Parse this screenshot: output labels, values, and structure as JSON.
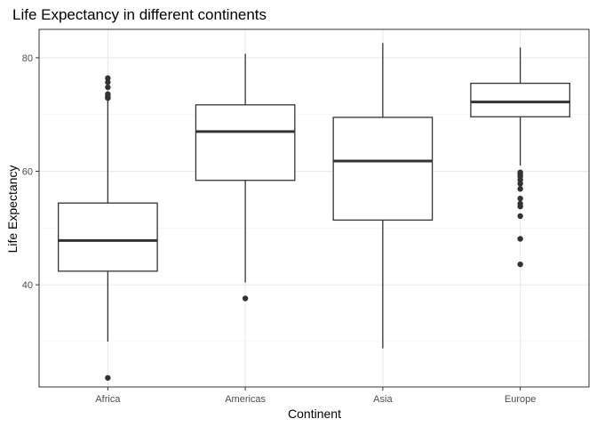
{
  "chart_data": {
    "type": "boxplot",
    "title": "Life Expectancy in different continents",
    "xlabel": "Continent",
    "ylabel": "Life Expectancy",
    "categories": [
      "Africa",
      "Americas",
      "Asia",
      "Europe"
    ],
    "ylim": [
      22,
      85
    ],
    "yticks": [
      40,
      60,
      80
    ],
    "grid": true,
    "boxes": [
      {
        "category": "Africa",
        "whisker_low": 30.0,
        "q1": 42.4,
        "median": 47.8,
        "q3": 54.4,
        "whisker_high": 72.8,
        "outliers": [
          23.6,
          72.9,
          73.0,
          73.2,
          73.6,
          74.8,
          75.7,
          76.4
        ]
      },
      {
        "category": "Americas",
        "whisker_low": 40.4,
        "q1": 58.4,
        "median": 67.0,
        "q3": 71.7,
        "whisker_high": 80.7,
        "outliers": [
          37.6
        ]
      },
      {
        "category": "Asia",
        "whisker_low": 28.8,
        "q1": 51.4,
        "median": 61.8,
        "q3": 69.5,
        "whisker_high": 82.6,
        "outliers": []
      },
      {
        "category": "Europe",
        "whisker_low": 61.0,
        "q1": 69.6,
        "median": 72.2,
        "q3": 75.5,
        "whisker_high": 81.8,
        "outliers": [
          43.6,
          48.1,
          52.1,
          53.8,
          54.3,
          55.2,
          56.9,
          57.8,
          58.5,
          59.1,
          59.5,
          59.8
        ]
      }
    ]
  }
}
